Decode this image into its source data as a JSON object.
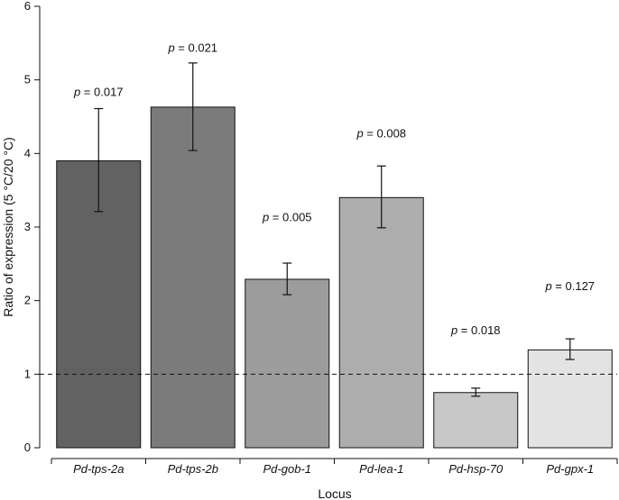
{
  "chart_data": {
    "type": "bar",
    "title": "",
    "xlabel": "Locus",
    "ylabel": "Ratio of expression (5 °C/20 °C)",
    "ylim": [
      0,
      6
    ],
    "yticks": [
      "0",
      "1",
      "2",
      "3",
      "4",
      "5",
      "6"
    ],
    "reference_line": 1,
    "categories": [
      "Pd-tps-2a",
      "Pd-tps-2b",
      "Pd-gob-1",
      "Pd-lea-1",
      "Pd-hsp-70",
      "Pd-gpx-1"
    ],
    "values": [
      3.9,
      4.63,
      2.29,
      3.4,
      0.75,
      1.33
    ],
    "error_low": [
      3.21,
      4.04,
      2.08,
      2.99,
      0.7,
      1.2
    ],
    "error_high": [
      4.61,
      5.23,
      2.51,
      3.83,
      0.81,
      1.48
    ],
    "bar_colors": [
      "#626262",
      "#7b7b7b",
      "#9c9c9c",
      "#adadad",
      "#c8c8c8",
      "#e3e3e3"
    ],
    "annotations": [
      {
        "letter": "p",
        "text": " = 0.017",
        "y": 4.78
      },
      {
        "letter": "p",
        "text": " = 0.021",
        "y": 5.38
      },
      {
        "letter": "p",
        "text": " = 0.005",
        "y": 3.08
      },
      {
        "letter": "p",
        "text": " = 0.008",
        "y": 4.22
      },
      {
        "letter": "p",
        "text": " = 0.018",
        "y": 1.54
      },
      {
        "letter": "p",
        "text": " = 0.127",
        "y": 2.14
      }
    ]
  }
}
